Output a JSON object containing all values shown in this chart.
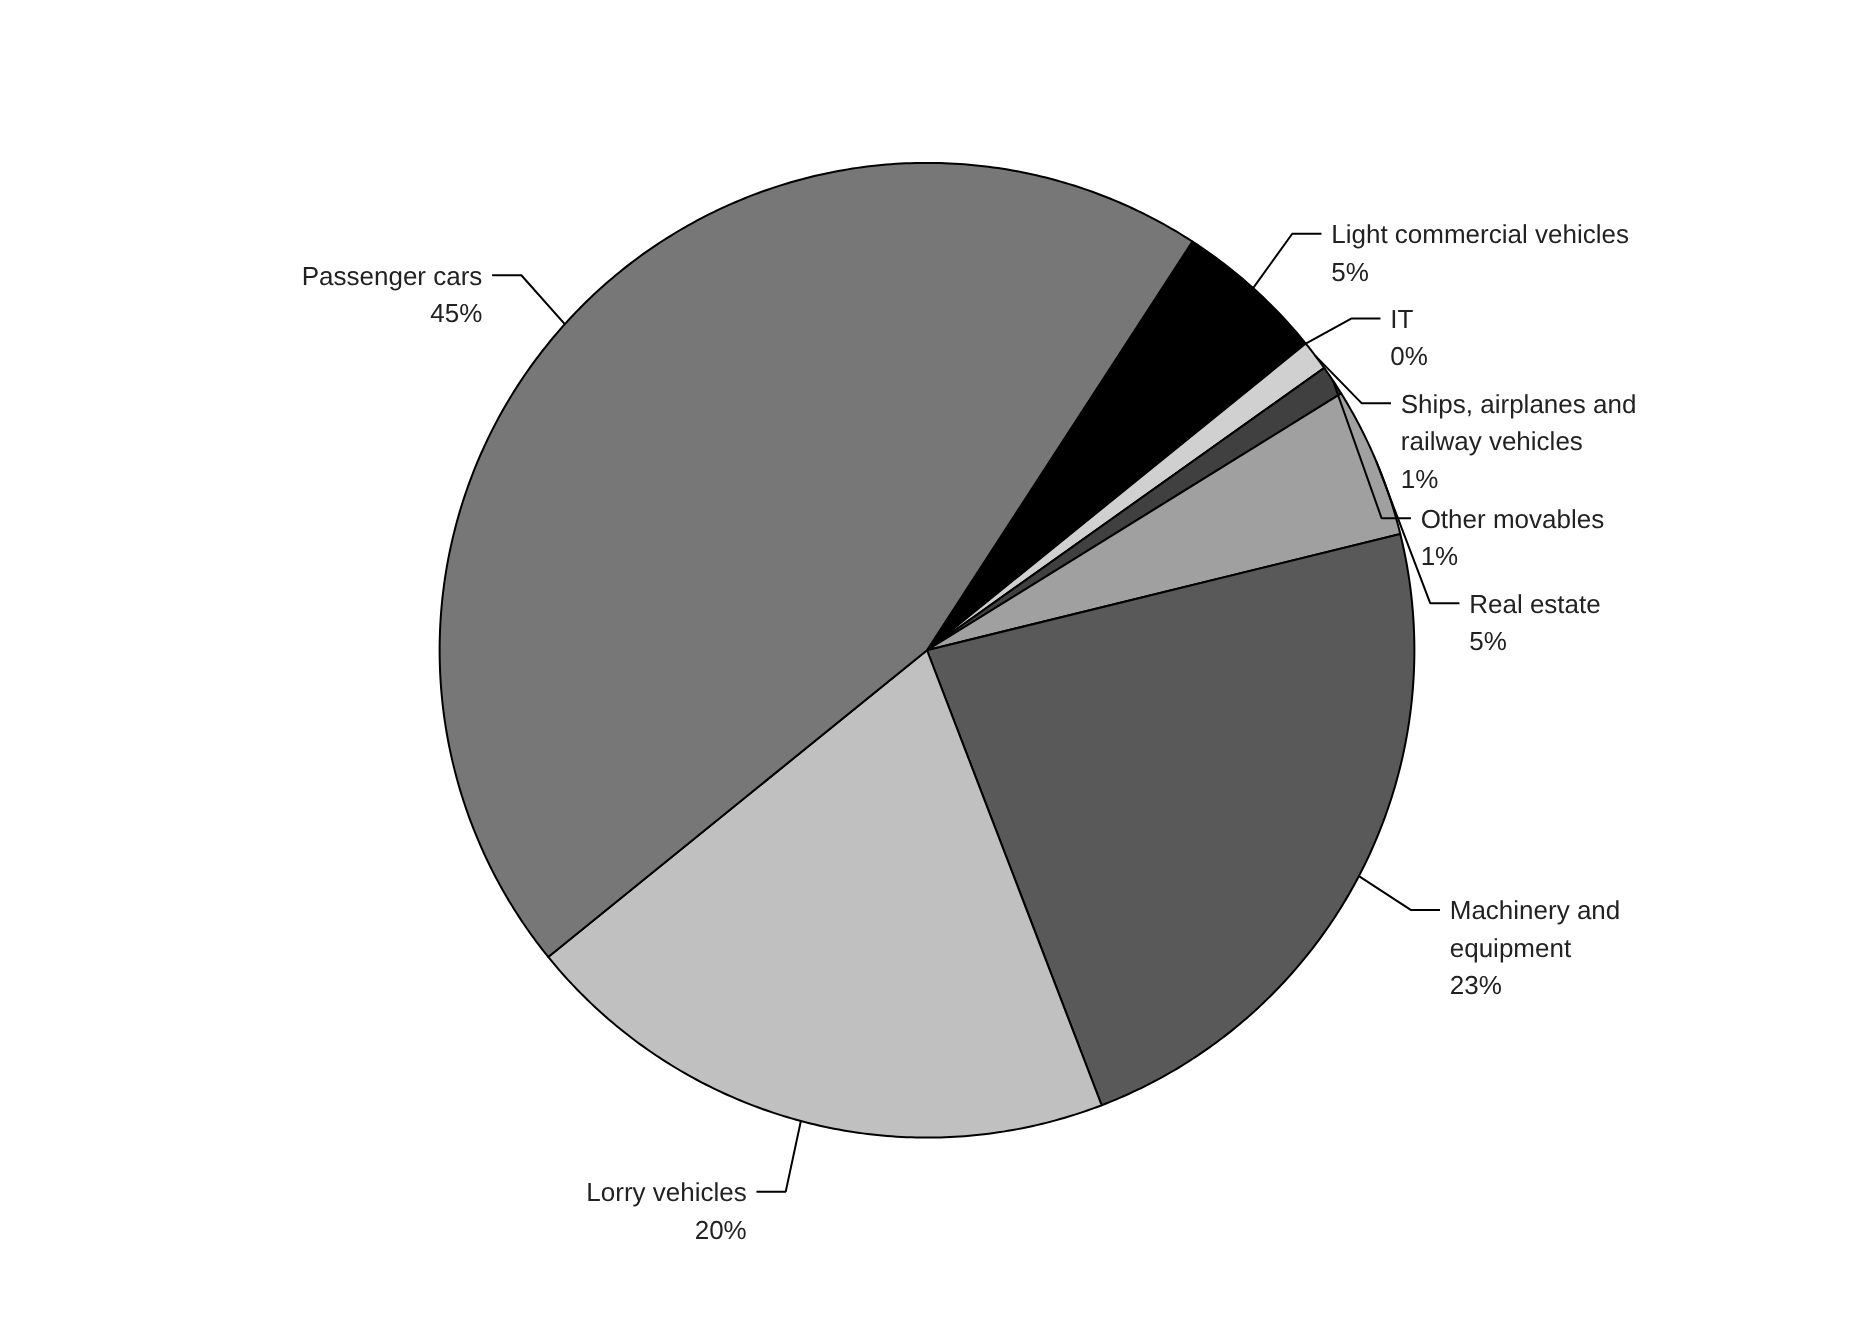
{
  "chart_data": {
    "type": "pie",
    "categories": [
      "Light commercial vehicles",
      "IT",
      "Ships, airplanes and\nrailway vehicles",
      "Other movables",
      "Real estate",
      "Machinery and\nequipment",
      "Lorry vehicles",
      "Passenger cars"
    ],
    "values": [
      5,
      0,
      1,
      1,
      5,
      23,
      20,
      45
    ],
    "value_labels": [
      "5%",
      "0%",
      "1%",
      "1%",
      "5%",
      "23%",
      "20%",
      "45%"
    ],
    "colors": [
      "#000000",
      "#ffffff",
      "#d0d0d0",
      "#404040",
      "#a0a0a0",
      "#595959",
      "#c0c0c0",
      "#777777"
    ]
  }
}
